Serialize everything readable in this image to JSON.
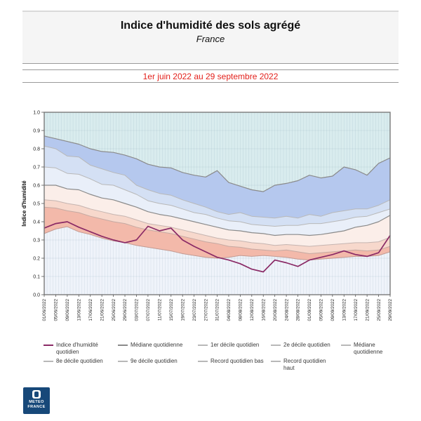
{
  "header": {
    "title": "Indice d'humidité des sols agrégé",
    "subtitle": "France"
  },
  "period": {
    "label": "1er juin 2022 au 29 septembre 2022",
    "color": "#e3211c"
  },
  "chart_data": {
    "type": "area",
    "ylabel": "Indice d'humidité",
    "ylim": [
      0.0,
      1.0
    ],
    "yticks": [
      "0.0",
      "0.1",
      "0.2",
      "0.3",
      "0.4",
      "0.5",
      "0.6",
      "0.7",
      "0.8",
      "0.9",
      "1.0"
    ],
    "x_days_per_tick": 4,
    "x_tick_labels": [
      "01/06/2022",
      "05/06/2022",
      "09/06/2022",
      "13/06/2022",
      "17/06/2022",
      "21/06/2022",
      "25/06/2022",
      "29/06/2022",
      "03/07/2022",
      "07/07/2022",
      "11/07/2022",
      "15/07/2022",
      "19/07/2022",
      "23/07/2022",
      "27/07/2022",
      "31/07/2022",
      "04/08/2022",
      "08/08/2022",
      "12/08/2022",
      "16/08/2022",
      "20/08/2022",
      "24/08/2022",
      "28/08/2022",
      "01/09/2022",
      "05/09/2022",
      "09/09/2022",
      "13/09/2022",
      "17/09/2022",
      "21/09/2022",
      "25/09/2022",
      "29/09/2022"
    ],
    "background": {
      "above": "#d9ecee",
      "below": "#eff3fa",
      "grid": "#7d9bad"
    },
    "border_color": "#7a7a7a",
    "series": [
      {
        "key": "record_haut",
        "name": "Record quotidien haut",
        "color": "#8a8a8a",
        "width": 1.2,
        "values": [
          0.87,
          0.855,
          0.84,
          0.825,
          0.8,
          0.785,
          0.78,
          0.765,
          0.745,
          0.715,
          0.7,
          0.695,
          0.67,
          0.655,
          0.645,
          0.68,
          0.615,
          0.595,
          0.575,
          0.565,
          0.6,
          0.61,
          0.625,
          0.655,
          0.64,
          0.65,
          0.7,
          0.685,
          0.655,
          0.72,
          0.75
        ]
      },
      {
        "key": "decile9",
        "name": "9e décile quotidien",
        "color": "#b8b8b8",
        "width": 1,
        "values": [
          0.815,
          0.8,
          0.76,
          0.755,
          0.71,
          0.69,
          0.67,
          0.655,
          0.6,
          0.575,
          0.555,
          0.545,
          0.52,
          0.5,
          0.48,
          0.455,
          0.44,
          0.45,
          0.43,
          0.425,
          0.42,
          0.43,
          0.42,
          0.44,
          0.43,
          0.45,
          0.46,
          0.47,
          0.47,
          0.49,
          0.52
        ]
      },
      {
        "key": "decile8",
        "name": "8e décile quotidien",
        "color": "#b8b8b8",
        "width": 1,
        "values": [
          0.7,
          0.695,
          0.665,
          0.66,
          0.635,
          0.605,
          0.6,
          0.575,
          0.55,
          0.515,
          0.5,
          0.49,
          0.47,
          0.45,
          0.44,
          0.42,
          0.405,
          0.4,
          0.385,
          0.38,
          0.375,
          0.38,
          0.38,
          0.39,
          0.39,
          0.4,
          0.41,
          0.425,
          0.43,
          0.45,
          0.47
        ]
      },
      {
        "key": "mediane",
        "name": "Médiane quotidienne",
        "color": "#8a8a8a",
        "width": 1.2,
        "values": [
          0.6,
          0.6,
          0.58,
          0.575,
          0.55,
          0.53,
          0.52,
          0.5,
          0.48,
          0.455,
          0.44,
          0.43,
          0.415,
          0.4,
          0.385,
          0.37,
          0.355,
          0.35,
          0.34,
          0.335,
          0.325,
          0.33,
          0.33,
          0.325,
          0.33,
          0.34,
          0.35,
          0.37,
          0.38,
          0.4,
          0.435
        ]
      },
      {
        "key": "decile2",
        "name": "2e décile quotidien",
        "color": "#c5b4b0",
        "width": 1,
        "values": [
          0.52,
          0.515,
          0.5,
          0.49,
          0.47,
          0.455,
          0.44,
          0.43,
          0.41,
          0.39,
          0.38,
          0.37,
          0.355,
          0.34,
          0.325,
          0.31,
          0.3,
          0.295,
          0.285,
          0.28,
          0.27,
          0.275,
          0.27,
          0.265,
          0.27,
          0.275,
          0.28,
          0.285,
          0.285,
          0.29,
          0.315
        ]
      },
      {
        "key": "decile1",
        "name": "1er décile quotidien",
        "color": "#c5a9a2",
        "width": 1,
        "values": [
          0.48,
          0.475,
          0.46,
          0.45,
          0.43,
          0.415,
          0.4,
          0.39,
          0.37,
          0.355,
          0.345,
          0.335,
          0.32,
          0.305,
          0.29,
          0.28,
          0.265,
          0.26,
          0.25,
          0.245,
          0.24,
          0.245,
          0.235,
          0.225,
          0.23,
          0.235,
          0.24,
          0.245,
          0.24,
          0.245,
          0.265
        ]
      },
      {
        "key": "record_bas",
        "name": "Record quotidien bas",
        "color": "#c39a92",
        "width": 1,
        "values": [
          0.335,
          0.36,
          0.373,
          0.345,
          0.33,
          0.31,
          0.295,
          0.285,
          0.27,
          0.26,
          0.25,
          0.24,
          0.225,
          0.215,
          0.205,
          0.2,
          0.205,
          0.215,
          0.21,
          0.215,
          0.21,
          0.205,
          0.195,
          0.19,
          0.195,
          0.2,
          0.205,
          0.21,
          0.21,
          0.215,
          0.235
        ]
      },
      {
        "key": "indice",
        "name": "Indice d'humidité quotidien",
        "color": "#8a2a66",
        "width": 1.7,
        "values": [
          0.365,
          0.39,
          0.4,
          0.37,
          0.345,
          0.32,
          0.3,
          0.285,
          0.3,
          0.375,
          0.35,
          0.365,
          0.3,
          0.265,
          0.235,
          0.205,
          0.19,
          0.17,
          0.14,
          0.125,
          0.19,
          0.175,
          0.155,
          0.19,
          0.205,
          0.22,
          0.24,
          0.22,
          0.21,
          0.23,
          0.325
        ]
      }
    ],
    "bands": [
      {
        "upper": "record_haut",
        "lower": "decile9",
        "fill": "#b5c8ee"
      },
      {
        "upper": "decile9",
        "lower": "decile8",
        "fill": "#d4e0f4"
      },
      {
        "upper": "decile8",
        "lower": "mediane",
        "fill": "#e9eff9"
      },
      {
        "upper": "mediane",
        "lower": "decile2",
        "fill": "#fbeee9"
      },
      {
        "upper": "decile2",
        "lower": "decile1",
        "fill": "#f7d8cc"
      },
      {
        "upper": "decile1",
        "lower": "record_bas",
        "fill": "#f3b9aa"
      }
    ]
  },
  "legend": {
    "items": [
      {
        "label": "Indice d'humidité quotidien",
        "color": "#8a2a66"
      },
      {
        "label": "Médiane quotidienne",
        "color": "#8a8a8a"
      },
      {
        "label": "1er décile quotidien",
        "color": "#b8b8b8"
      },
      {
        "label": "2e décile quotidien",
        "color": "#b8b8b8"
      },
      {
        "label": "Médiane quotidienne",
        "color": "#b8b8b8"
      },
      {
        "label": "8e décile quotidien",
        "color": "#b8b8b8"
      },
      {
        "label": "9e décile quotidien",
        "color": "#b8b8b8"
      },
      {
        "label": "Record quotidien bas",
        "color": "#b8b8b8"
      },
      {
        "label": "Record quotidien haut",
        "color": "#b8b8b8"
      }
    ]
  },
  "logo": {
    "line1": "METEO",
    "line2": "FRANCE",
    "bg": "#174879"
  }
}
